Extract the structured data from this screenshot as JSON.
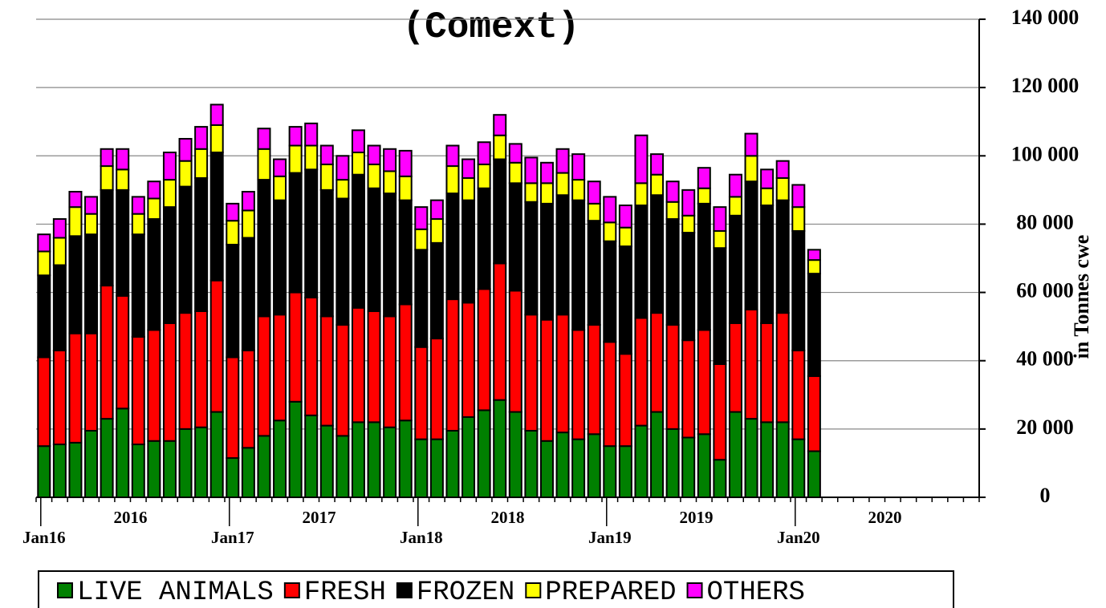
{
  "chart_data": {
    "type": "stacked_bar",
    "title": "(Comext)",
    "y_axis_label": "in Tonnes cwe",
    "categories": [
      "Jan16",
      null,
      null,
      null,
      null,
      null,
      null,
      null,
      null,
      null,
      null,
      null,
      "Jan17",
      null,
      null,
      null,
      null,
      null,
      null,
      null,
      null,
      null,
      null,
      null,
      "Jan18",
      null,
      null,
      null,
      null,
      null,
      null,
      null,
      null,
      null,
      null,
      null,
      "Jan19",
      null,
      null,
      null,
      null,
      null,
      null,
      null,
      null,
      null,
      null,
      null,
      "Jan20",
      null,
      null,
      null,
      null,
      null,
      null,
      null,
      null,
      null,
      null,
      null
    ],
    "year_labels": [
      "2016",
      "2017",
      "2018",
      "2019",
      "2020"
    ],
    "series": [
      {
        "name": "LIVE ANIMALS",
        "color": "#008000",
        "values": [
          15000,
          15500,
          16000,
          19500,
          23000,
          26000,
          15500,
          16500,
          16500,
          20000,
          20500,
          25000,
          11500,
          14500,
          18000,
          22500,
          28000,
          24000,
          21000,
          18000,
          22000,
          22000,
          20500,
          22500,
          17000,
          17000,
          19500,
          23500,
          25500,
          28500,
          25000,
          19500,
          16500,
          19000,
          17000,
          18500,
          15000,
          15000,
          21000,
          25000,
          20000,
          17500,
          18500,
          11000,
          25000,
          23000,
          22000,
          22000,
          17000,
          13500,
          null,
          null,
          null,
          null,
          null,
          null,
          null,
          null,
          null,
          null
        ]
      },
      {
        "name": "FRESH",
        "color": "#ff0000",
        "values": [
          26000,
          27500,
          32000,
          28500,
          39000,
          33000,
          31500,
          32500,
          34500,
          34000,
          34000,
          38500,
          29500,
          28500,
          35000,
          31000,
          32000,
          34500,
          32000,
          32500,
          33500,
          32500,
          32500,
          34000,
          27000,
          29500,
          38500,
          33500,
          35500,
          40000,
          35500,
          34000,
          35500,
          34500,
          32000,
          32000,
          30500,
          27000,
          31500,
          29000,
          30500,
          28500,
          30500,
          28000,
          26000,
          32000,
          29000,
          32000,
          26000,
          22000,
          null,
          null,
          null,
          null,
          null,
          null,
          null,
          null,
          null,
          null
        ]
      },
      {
        "name": "FROZEN",
        "color": "#000000",
        "values": [
          24000,
          25000,
          28500,
          29000,
          28000,
          31000,
          30000,
          32500,
          34000,
          37000,
          39000,
          37500,
          33000,
          33000,
          40000,
          33500,
          35000,
          37500,
          37000,
          37000,
          39000,
          36000,
          36000,
          30500,
          28500,
          28000,
          31000,
          30000,
          29500,
          30500,
          31500,
          33000,
          34000,
          35000,
          38000,
          30500,
          29500,
          31500,
          33000,
          34500,
          31000,
          31500,
          37000,
          34000,
          31500,
          37500,
          34500,
          33000,
          35000,
          30000,
          null,
          null,
          null,
          null,
          null,
          null,
          null,
          null,
          null,
          null
        ]
      },
      {
        "name": "PREPARED",
        "color": "#ffff00",
        "values": [
          7000,
          8000,
          8500,
          6000,
          7000,
          6000,
          6000,
          6000,
          8000,
          7500,
          8500,
          8000,
          7000,
          8000,
          9000,
          7000,
          8000,
          7000,
          7500,
          5500,
          6500,
          7000,
          6500,
          7000,
          6000,
          7000,
          8000,
          6500,
          7000,
          7000,
          6000,
          5500,
          6000,
          6500,
          6000,
          5000,
          5500,
          5500,
          6500,
          6000,
          5000,
          5000,
          4500,
          5000,
          5500,
          7500,
          5000,
          6500,
          7000,
          4000,
          null,
          null,
          null,
          null,
          null,
          null,
          null,
          null,
          null,
          null
        ]
      },
      {
        "name": "OTHERS",
        "color": "#ff00ff",
        "values": [
          5000,
          5500,
          4500,
          5000,
          5000,
          6000,
          5000,
          5000,
          8000,
          6500,
          6500,
          6000,
          5000,
          5500,
          6000,
          5000,
          5500,
          6500,
          5500,
          7000,
          6500,
          5500,
          6500,
          7500,
          6500,
          5500,
          6000,
          5500,
          6500,
          6000,
          5500,
          7500,
          6000,
          7000,
          7500,
          6500,
          7500,
          6500,
          14000,
          6000,
          6000,
          7500,
          6000,
          7000,
          6500,
          6500,
          5500,
          5000,
          6500,
          3000,
          null,
          null,
          null,
          null,
          null,
          null,
          null,
          null,
          null,
          null
        ]
      }
    ],
    "ylim": [
      0,
      140000
    ],
    "yticks": [
      0,
      {
        "value": 20000,
        "label": "20 000"
      },
      {
        "value": 40000,
        "label": "40 000"
      },
      {
        "value": 60000,
        "label": "60 000"
      },
      {
        "value": 80000,
        "label": "80 000"
      },
      {
        "value": 100000,
        "label": "100 000"
      },
      {
        "value": 120000,
        "label": "120 000"
      },
      {
        "value": 140000,
        "label": "140 000"
      }
    ],
    "grid": true,
    "legend": "bottom"
  }
}
